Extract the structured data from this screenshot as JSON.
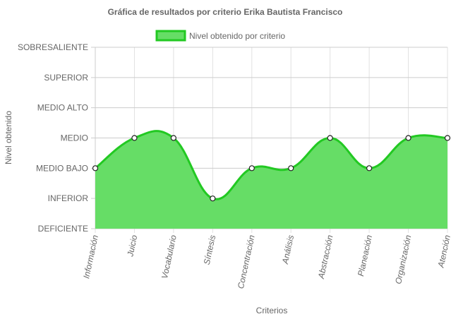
{
  "chart_data": {
    "type": "line",
    "title": "Gráfica de resultados por criterio Erika Bautista Francisco",
    "xlabel": "Criterios",
    "ylabel": "Nivel obtenido",
    "levels": [
      "DEFICIENTE",
      "INFERIOR",
      "MEDIO BAJO",
      "MEDIO",
      "MEDIO ALTO",
      "SUPERIOR",
      "SOBRESALIENTE"
    ],
    "categories": [
      "Información",
      "Juicio",
      "Vocabulario",
      "Síntesis",
      "Concentración",
      "Análisis",
      "Abstracción",
      "Planeación",
      "Organización",
      "Atención"
    ],
    "series": [
      {
        "name": "Nivel obtenido por criterio",
        "values": [
          "MEDIO BAJO",
          "MEDIO",
          "MEDIO",
          "INFERIOR",
          "MEDIO BAJO",
          "MEDIO BAJO",
          "MEDIO",
          "MEDIO BAJO",
          "MEDIO",
          "MEDIO"
        ],
        "color": "#22c922",
        "fill": "#66dd66"
      }
    ],
    "legend_position": "top",
    "grid": true,
    "filled": true,
    "smooth": true
  }
}
